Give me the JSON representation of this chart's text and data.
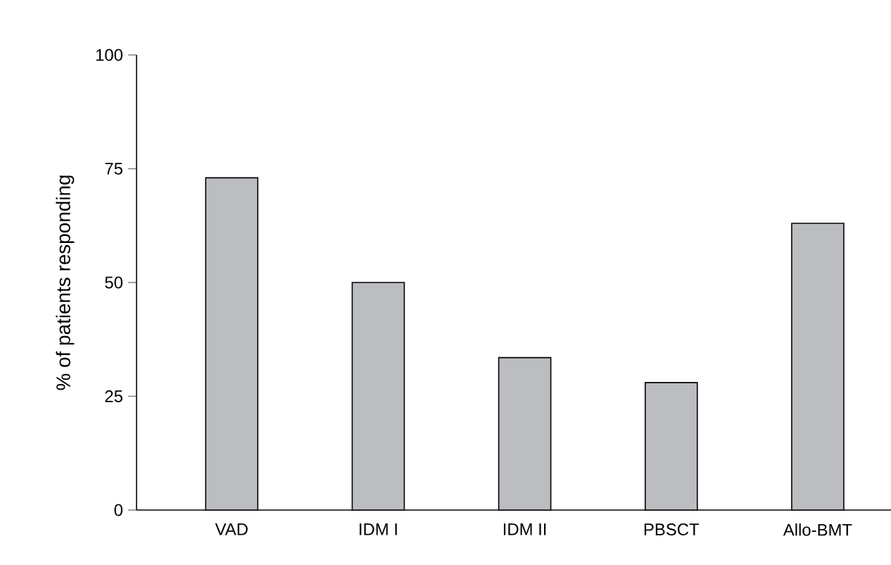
{
  "chart_data": {
    "type": "bar",
    "ylabel": "% of patients responding",
    "categories": [
      "VAD",
      "IDM I",
      "IDM II",
      "PBSCT",
      "Allo-BMT"
    ],
    "values": [
      73,
      50,
      33.5,
      28,
      63
    ],
    "color": "#bcbdc1",
    "ylim": [
      0,
      100
    ],
    "yticks": [
      0,
      25,
      50,
      75,
      100
    ],
    "grid": false
  }
}
